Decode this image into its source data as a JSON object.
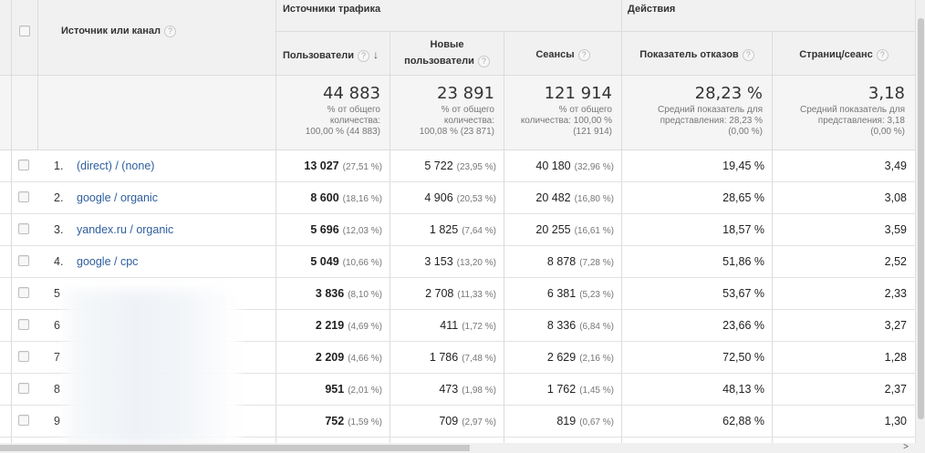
{
  "header": {
    "dimension_label": "Источник или канал",
    "group_traffic": "Источники трафика",
    "group_actions": "Действия",
    "columns": {
      "users": "Пользователи",
      "new_users_line1": "Новые",
      "new_users_line2": "пользователи",
      "sessions": "Сеансы",
      "bounce": "Показатель отказов",
      "pages": "Страниц/сеанс"
    },
    "help_glyph": "?",
    "sort_glyph": "↓"
  },
  "totals": {
    "users": {
      "value": "44 883",
      "l1": "% от общего",
      "l2": "количества:",
      "l3": "100,00 % (44 883)"
    },
    "new_users": {
      "value": "23 891",
      "l1": "% от общего",
      "l2": "количества:",
      "l3": "100,08 % (23 871)"
    },
    "sessions": {
      "value": "121 914",
      "l1": "% от общего",
      "l2": "количества: 100,00 %",
      "l3": "(121 914)"
    },
    "bounce": {
      "value": "28,23 %",
      "l1": "Средний показатель для",
      "l2": "представления: 28,23 %",
      "l3": "(0,00 %)"
    },
    "pages": {
      "value": "3,18",
      "l1": "Средний показатель для",
      "l2": "представления: 3,18",
      "l3": "(0,00 %)"
    }
  },
  "rows": [
    {
      "idx": "1.",
      "source": "(direct) / (none)",
      "users": "13 027",
      "users_pct": "(27,51 %)",
      "new_users": "5 722",
      "new_users_pct": "(23,95 %)",
      "sessions": "40 180",
      "sessions_pct": "(32,96 %)",
      "bounce": "19,45 %",
      "pages": "3,49"
    },
    {
      "idx": "2.",
      "source": "google / organic",
      "users": "8 600",
      "users_pct": "(18,16 %)",
      "new_users": "4 906",
      "new_users_pct": "(20,53 %)",
      "sessions": "20 482",
      "sessions_pct": "(16,80 %)",
      "bounce": "28,65 %",
      "pages": "3,08"
    },
    {
      "idx": "3.",
      "source": "yandex.ru / organic",
      "users": "5 696",
      "users_pct": "(12,03 %)",
      "new_users": "1 825",
      "new_users_pct": "(7,64 %)",
      "sessions": "20 255",
      "sessions_pct": "(16,61 %)",
      "bounce": "18,57 %",
      "pages": "3,59"
    },
    {
      "idx": "4.",
      "source": "google / cpc",
      "users": "5 049",
      "users_pct": "(10,66 %)",
      "new_users": "3 153",
      "new_users_pct": "(13,20 %)",
      "sessions": "8 878",
      "sessions_pct": "(7,28 %)",
      "bounce": "51,86 %",
      "pages": "2,52"
    },
    {
      "idx": "5",
      "source": "",
      "users": "3 836",
      "users_pct": "(8,10 %)",
      "new_users": "2 708",
      "new_users_pct": "(11,33 %)",
      "sessions": "6 381",
      "sessions_pct": "(5,23 %)",
      "bounce": "53,67 %",
      "pages": "2,33"
    },
    {
      "idx": "6",
      "source": "",
      "users": "2 219",
      "users_pct": "(4,69 %)",
      "new_users": "411",
      "new_users_pct": "(1,72 %)",
      "sessions": "8 336",
      "sessions_pct": "(6,84 %)",
      "bounce": "23,66 %",
      "pages": "3,27"
    },
    {
      "idx": "7",
      "source": "",
      "users": "2 209",
      "users_pct": "(4,66 %)",
      "new_users": "1 786",
      "new_users_pct": "(7,48 %)",
      "sessions": "2 629",
      "sessions_pct": "(2,16 %)",
      "bounce": "72,50 %",
      "pages": "1,28"
    },
    {
      "idx": "8",
      "source": "",
      "users": "951",
      "users_pct": "(2,01 %)",
      "new_users": "473",
      "new_users_pct": "(1,98 %)",
      "sessions": "1 762",
      "sessions_pct": "(1,45 %)",
      "bounce": "48,13 %",
      "pages": "2,37"
    },
    {
      "idx": "9",
      "source": "",
      "users": "752",
      "users_pct": "(1,59 %)",
      "new_users": "709",
      "new_users_pct": "(2,97 %)",
      "sessions": "819",
      "sessions_pct": "(0,67 %)",
      "bounce": "62,88 %",
      "pages": "1,30"
    }
  ],
  "scroll": {
    "right_arrow": ">"
  }
}
